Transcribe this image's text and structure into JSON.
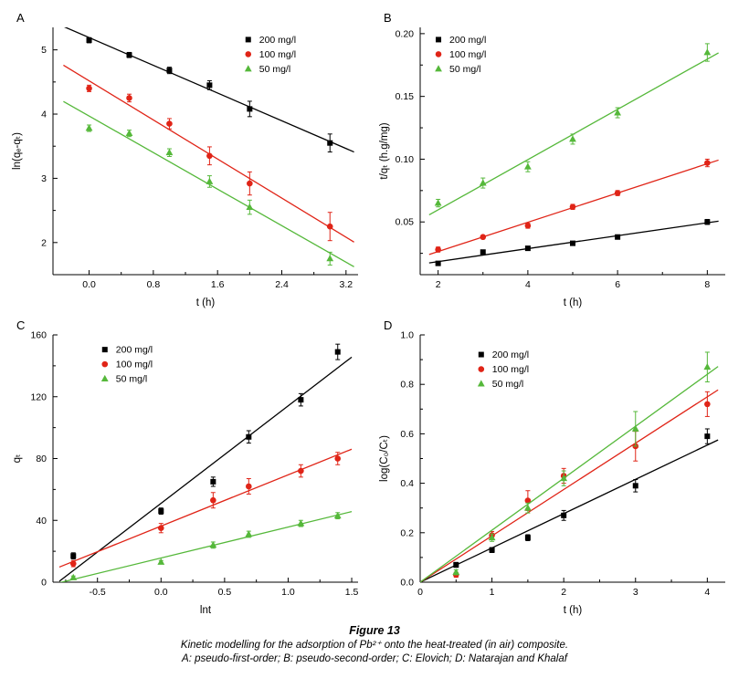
{
  "figure": {
    "number_label": "Figure 13",
    "caption_line1": "Kinetic modelling for the adsorption of Pb²⁺ onto the heat-treated (in air) composite.",
    "caption_line2": "A: pseudo-first-order; B: pseudo-second-order; C: Elovich; D: Natarajan and Khalaf"
  },
  "colors": {
    "series_200": "#000000",
    "series_100": "#e02417",
    "series_50": "#55b83a"
  },
  "legend_labels": [
    "200 mg/l",
    "100 mg/l",
    "50 mg/l"
  ],
  "chart_data": [
    {
      "type": "scatter",
      "panel": "A",
      "title": "pseudo-first-order",
      "xlabel": "t (h)",
      "ylabel": "ln(qₑ-qₜ)",
      "xlim": [
        -0.45,
        3.35
      ],
      "ylim": [
        1.5,
        5.35
      ],
      "xticks": [
        0.0,
        0.8,
        1.6,
        2.4,
        3.2
      ],
      "xtick_labels": [
        "0.0",
        "0.8",
        "1.6",
        "2.4",
        "3.2"
      ],
      "xminor": [
        0.4,
        1.2,
        2.0,
        2.8
      ],
      "yticks": [
        2,
        3,
        4,
        5
      ],
      "ytick_labels": [
        "2",
        "3",
        "4",
        "5"
      ],
      "yminor": [
        2.5,
        3.5,
        4.5
      ],
      "fit_x_range": [
        -0.32,
        3.3
      ],
      "legend_xy": [
        0.64,
        0.02
      ],
      "series": [
        {
          "name": "200 mg/l",
          "marker": "square",
          "color": "#000000",
          "x": [
            0,
            0.5,
            1,
            1.5,
            2,
            3
          ],
          "y": [
            5.15,
            4.92,
            4.68,
            4.45,
            4.08,
            3.55
          ],
          "yerr": [
            0.04,
            0.04,
            0.05,
            0.07,
            0.12,
            0.14
          ]
        },
        {
          "name": "100 mg/l",
          "marker": "circle",
          "color": "#e02417",
          "x": [
            0,
            0.5,
            1,
            1.5,
            2,
            3
          ],
          "y": [
            4.4,
            4.25,
            3.85,
            3.35,
            2.92,
            2.25
          ],
          "yerr": [
            0.05,
            0.06,
            0.08,
            0.14,
            0.18,
            0.22
          ]
        },
        {
          "name": "50 mg/l",
          "marker": "triangle",
          "color": "#55b83a",
          "x": [
            0,
            0.5,
            1,
            1.5,
            2,
            3
          ],
          "y": [
            3.78,
            3.7,
            3.4,
            2.95,
            2.55,
            1.75
          ],
          "yerr": [
            0.05,
            0.05,
            0.06,
            0.09,
            0.11,
            0.1
          ]
        }
      ]
    },
    {
      "type": "scatter",
      "panel": "B",
      "title": "pseudo-second-order",
      "xlabel": "t (h)",
      "ylabel": "t/qₜ (h.g/mg)",
      "xlim": [
        1.6,
        8.4
      ],
      "ylim": [
        0.008,
        0.205
      ],
      "xticks": [
        2,
        4,
        6,
        8
      ],
      "xtick_labels": [
        "2",
        "4",
        "6",
        "8"
      ],
      "xminor": [
        3,
        5,
        7
      ],
      "yticks": [
        0.05,
        0.1,
        0.15,
        0.2
      ],
      "ytick_labels": [
        "0.05",
        "0.10",
        "0.15",
        "0.20"
      ],
      "yminor": [
        0.025,
        0.075,
        0.125,
        0.175
      ],
      "fit_x_range": [
        1.8,
        8.25
      ],
      "legend_xy": [
        0.06,
        0.02
      ],
      "series": [
        {
          "name": "200 mg/l",
          "marker": "square",
          "color": "#000000",
          "x": [
            2,
            3,
            4,
            5,
            6,
            8
          ],
          "y": [
            0.017,
            0.026,
            0.029,
            0.033,
            0.038,
            0.05
          ],
          "yerr": [
            0,
            0,
            0,
            0,
            0,
            0.002
          ]
        },
        {
          "name": "100 mg/l",
          "marker": "circle",
          "color": "#e02417",
          "x": [
            2,
            3,
            4,
            5,
            6,
            8
          ],
          "y": [
            0.028,
            0.038,
            0.047,
            0.062,
            0.073,
            0.097
          ],
          "yerr": [
            0.002,
            0,
            0.002,
            0.002,
            0.002,
            0.003
          ]
        },
        {
          "name": "50 mg/l",
          "marker": "triangle",
          "color": "#55b83a",
          "x": [
            2,
            3,
            4,
            5,
            6,
            8
          ],
          "y": [
            0.065,
            0.081,
            0.094,
            0.116,
            0.137,
            0.185
          ],
          "yerr": [
            0.003,
            0.004,
            0.004,
            0.004,
            0.004,
            0.007
          ]
        }
      ]
    },
    {
      "type": "scatter",
      "panel": "C",
      "title": "Elovich",
      "xlabel": "lnt",
      "ylabel": "qₜ",
      "xlim": [
        -0.85,
        1.55
      ],
      "ylim": [
        0,
        160
      ],
      "xticks": [
        -0.5,
        0.0,
        0.5,
        1.0,
        1.5
      ],
      "xtick_labels": [
        "-0.5",
        "0.0",
        "0.5",
        "1.0",
        "1.5"
      ],
      "xminor": [
        -0.75,
        -0.25,
        0.25,
        0.75,
        1.25
      ],
      "yticks": [
        0,
        40,
        80,
        120,
        160
      ],
      "ytick_labels": [
        "0",
        "40",
        "80",
        "120",
        "160"
      ],
      "yminor": [
        20,
        60,
        100,
        140
      ],
      "fit_x_range": [
        -0.8,
        1.5
      ],
      "legend_xy": [
        0.17,
        0.03
      ],
      "series": [
        {
          "name": "200 mg/l",
          "marker": "square",
          "color": "#000000",
          "x": [
            -0.69,
            0,
            0.41,
            0.69,
            1.1,
            1.39
          ],
          "y": [
            17,
            46,
            65,
            94,
            118,
            149
          ],
          "yerr": [
            2,
            2,
            3,
            4,
            4,
            5
          ]
        },
        {
          "name": "100 mg/l",
          "marker": "circle",
          "color": "#e02417",
          "x": [
            -0.69,
            0,
            0.41,
            0.69,
            1.1,
            1.39
          ],
          "y": [
            12,
            35,
            53,
            62,
            72,
            80
          ],
          "yerr": [
            2,
            3,
            5,
            5,
            4,
            4
          ]
        },
        {
          "name": "50 mg/l",
          "marker": "triangle",
          "color": "#55b83a",
          "x": [
            -0.69,
            0,
            0.41,
            0.69,
            1.1,
            1.39
          ],
          "y": [
            3,
            13,
            24,
            31,
            38,
            43
          ],
          "yerr": [
            1,
            1,
            2,
            2,
            2,
            2
          ]
        }
      ]
    },
    {
      "type": "scatter",
      "panel": "D",
      "title": "Natarajan and Khalaf",
      "xlabel": "t (h)",
      "ylabel": "log(C₀/Cₜ)",
      "xlim": [
        0,
        4.25
      ],
      "ylim": [
        0,
        1.0
      ],
      "xticks": [
        0,
        1,
        2,
        3,
        4
      ],
      "xtick_labels": [
        "0",
        "1",
        "2",
        "3",
        "4"
      ],
      "xminor": [
        0.5,
        1.5,
        2.5,
        3.5
      ],
      "yticks": [
        0.0,
        0.2,
        0.4,
        0.6,
        0.8,
        1.0
      ],
      "ytick_labels": [
        "0.0",
        "0.2",
        "0.4",
        "0.6",
        "0.8",
        "1.0"
      ],
      "yminor": [
        0.1,
        0.3,
        0.5,
        0.7,
        0.9
      ],
      "fit_x_range": [
        0,
        4.15
      ],
      "fit_through_origin": true,
      "legend_xy": [
        0.2,
        0.05
      ],
      "series": [
        {
          "name": "200 mg/l",
          "marker": "square",
          "color": "#000000",
          "x": [
            0.5,
            1,
            1.5,
            2,
            3,
            4
          ],
          "y": [
            0.07,
            0.13,
            0.18,
            0.27,
            0.39,
            0.59
          ],
          "yerr": [
            0.01,
            0.01,
            0.012,
            0.02,
            0.025,
            0.03
          ]
        },
        {
          "name": "100 mg/l",
          "marker": "circle",
          "color": "#e02417",
          "x": [
            0.5,
            1,
            1.5,
            2,
            3,
            4
          ],
          "y": [
            0.03,
            0.19,
            0.33,
            0.43,
            0.55,
            0.72
          ],
          "yerr": [
            0.01,
            0.015,
            0.04,
            0.03,
            0.06,
            0.05
          ]
        },
        {
          "name": "50 mg/l",
          "marker": "triangle",
          "color": "#55b83a",
          "x": [
            0.5,
            1,
            1.5,
            2,
            3,
            4
          ],
          "y": [
            0.04,
            0.18,
            0.3,
            0.42,
            0.62,
            0.87
          ],
          "yerr": [
            0.01,
            0.015,
            0.02,
            0.03,
            0.07,
            0.06
          ]
        }
      ]
    }
  ]
}
